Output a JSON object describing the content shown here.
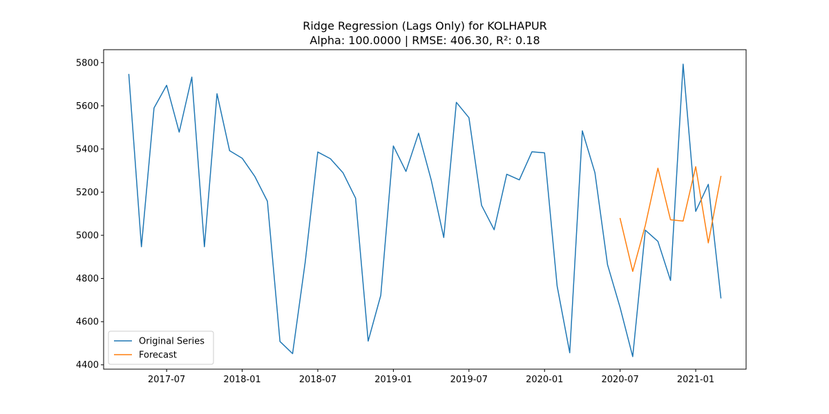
{
  "chart_data": {
    "type": "line",
    "title": "Ridge Regression (Lags Only) for KOLHAPUR",
    "subtitle": "Alpha: 100.0000 | RMSE: 406.30, R²: 0.18",
    "xlabel": "",
    "ylabel": "",
    "xlim": [
      "2017-02-01",
      "2021-05-01"
    ],
    "ylim": [
      4380,
      5860
    ],
    "x_ticks": [
      "2017-07",
      "2018-01",
      "2018-07",
      "2019-01",
      "2019-07",
      "2020-01",
      "2020-07",
      "2021-01"
    ],
    "y_ticks": [
      4400,
      4600,
      4800,
      5000,
      5200,
      5400,
      5600,
      5800
    ],
    "grid": false,
    "legend_position": "lower-left",
    "series": [
      {
        "name": "Original Series",
        "color": "#1f77b4",
        "x": [
          "2017-04",
          "2017-05",
          "2017-06",
          "2017-07",
          "2017-08",
          "2017-09",
          "2017-10",
          "2017-11",
          "2017-12",
          "2018-01",
          "2018-02",
          "2018-03",
          "2018-04",
          "2018-05",
          "2018-06",
          "2018-07",
          "2018-08",
          "2018-09",
          "2018-10",
          "2018-11",
          "2018-12",
          "2019-01",
          "2019-02",
          "2019-03",
          "2019-04",
          "2019-05",
          "2019-06",
          "2019-07",
          "2019-08",
          "2019-09",
          "2019-10",
          "2019-11",
          "2019-12",
          "2020-01",
          "2020-02",
          "2020-03",
          "2020-04",
          "2020-05",
          "2020-06",
          "2020-07",
          "2020-08",
          "2020-09",
          "2020-10",
          "2020-11",
          "2020-12",
          "2021-01",
          "2021-02",
          "2021-03"
        ],
        "values": [
          5745,
          4947,
          5590,
          5695,
          5478,
          5733,
          4947,
          5656,
          5392,
          5357,
          5273,
          5158,
          4508,
          4452,
          4875,
          5386,
          5355,
          5290,
          5172,
          4510,
          4722,
          5414,
          5296,
          5473,
          5257,
          4990,
          5616,
          5545,
          5139,
          5026,
          5283,
          5257,
          5387,
          5382,
          4765,
          4456,
          5484,
          5290,
          4864,
          4665,
          4438,
          5024,
          4972,
          4791,
          5793,
          5111,
          5236,
          4710
        ]
      },
      {
        "name": "Forecast",
        "color": "#ff7f0e",
        "x": [
          "2020-07",
          "2020-08",
          "2020-09",
          "2020-10",
          "2020-11",
          "2020-12",
          "2021-01",
          "2021-02",
          "2021-03"
        ],
        "values": [
          5078,
          4833,
          5046,
          5311,
          5072,
          5066,
          5318,
          4965,
          5273
        ]
      }
    ]
  }
}
